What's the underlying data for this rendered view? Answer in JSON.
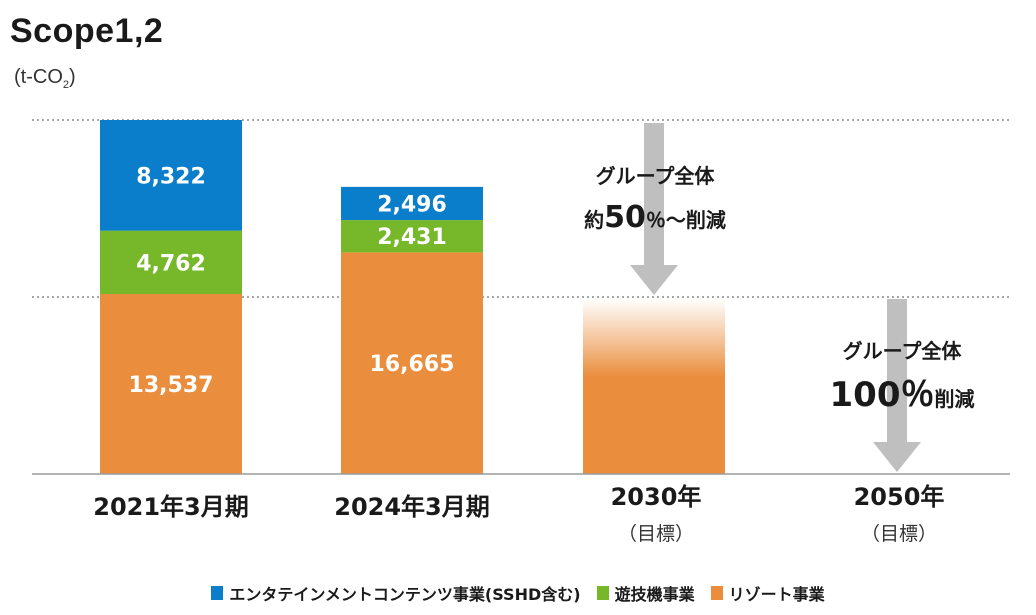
{
  "title": "Scope1,2",
  "unit_prefix": "(t-CO",
  "unit_sub": "2",
  "unit_suffix": ")",
  "chart_data": {
    "type": "bar",
    "stacked": true,
    "categories": [
      "2021年3月期",
      "2024年3月期",
      "2030年",
      "2050年"
    ],
    "category_notes": [
      "",
      "",
      "（目標）",
      "（目標）"
    ],
    "series": [
      {
        "name": "リゾート事業",
        "color": "#ea8d3c",
        "values": [
          13537,
          16665,
          null,
          null
        ],
        "labels": [
          "13,537",
          "16,665",
          "",
          ""
        ]
      },
      {
        "name": "遊技機事業",
        "color": "#76b82a",
        "values": [
          4762,
          2431,
          null,
          null
        ],
        "labels": [
          "4,762",
          "2,431",
          "",
          ""
        ]
      },
      {
        "name": "エンタテインメントコンテンツ事業(SSHD含む)",
        "color": "#0a7ecb",
        "values": [
          8322,
          2496,
          null,
          null
        ],
        "labels": [
          "8,322",
          "2,496",
          "",
          ""
        ]
      }
    ],
    "targets": [
      {
        "category": "2030年",
        "value": 13311,
        "reduction_line1": "グループ全体",
        "reduction_pre": "約",
        "reduction_num": "50",
        "reduction_post": "％〜削減"
      },
      {
        "category": "2050年",
        "value": 0,
        "reduction_line1": "グループ全体",
        "reduction_pre": "",
        "reduction_num": "100％",
        "reduction_post": "削減"
      }
    ],
    "ylim": [
      0,
      26621
    ],
    "grid": "dotted reference lines at 2021 total and 50% level",
    "legend_position": "bottom"
  }
}
